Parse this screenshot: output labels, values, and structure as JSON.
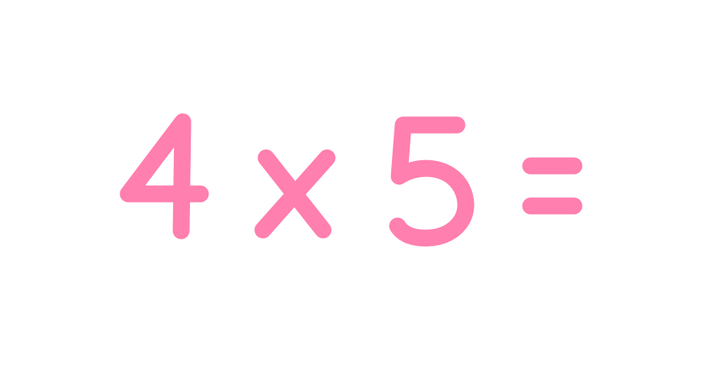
{
  "equation": {
    "operand_a": "4",
    "operator": "x",
    "operand_b": "5",
    "equals": "=",
    "ink_color": "#ff7fae"
  }
}
